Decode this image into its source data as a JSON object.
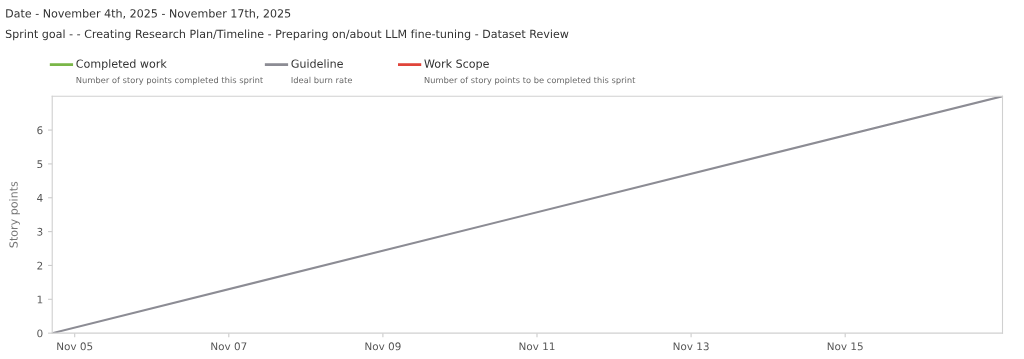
{
  "chart_data": {
    "type": "line",
    "title": "Date - November 4th, 2025 - November 17th, 2025",
    "subtitle": "Sprint goal - - Creating Research Plan/Timeline - Preparing on/about LLM fine-tuning - Dataset Review",
    "ylabel": "Story points",
    "annotations": [
      "Number of story points completed this sprint",
      "Ideal burn rate",
      "Number of story points to be completed this sprint"
    ],
    "x": [
      "2025-11-04T17:00",
      "2025-11-17T01:00"
    ],
    "series": [
      {
        "name": "Completed work",
        "color": "#7ab648",
        "values": [
          null,
          null
        ]
      },
      {
        "name": "Guideline",
        "color": "#8c8c94",
        "values": [
          0,
          7
        ]
      },
      {
        "name": "Work Scope",
        "color": "#e0443a",
        "values": [
          null,
          null
        ]
      }
    ],
    "xlim": [
      "2025-11-04T17:00",
      "2025-11-17T01:00"
    ],
    "xticks": [
      {
        "value": "2025-11-05",
        "label": "Nov 05"
      },
      {
        "value": "2025-11-07",
        "label": "Nov 07"
      },
      {
        "value": "2025-11-09",
        "label": "Nov 09"
      },
      {
        "value": "2025-11-11",
        "label": "Nov 11"
      },
      {
        "value": "2025-11-13",
        "label": "Nov 13"
      },
      {
        "value": "2025-11-15",
        "label": "Nov 15"
      }
    ],
    "ylim": [
      0,
      7
    ],
    "yticks": [
      0,
      1,
      2,
      3,
      4,
      5,
      6
    ],
    "grid": false,
    "legend": "top left",
    "marker": "none",
    "line_style": "solid"
  }
}
